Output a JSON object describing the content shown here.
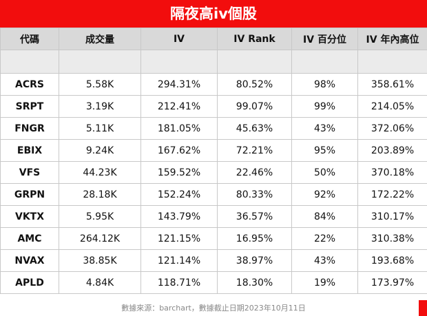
{
  "title": "隔夜高iv個股",
  "headers": [
    "代碼",
    "成交量",
    "IV",
    "IV Rank",
    "IV 百分位",
    "IV 年內高位"
  ],
  "rows": [
    {
      "code": "ACRS",
      "volume": "5.58K",
      "iv": "294.31%",
      "iv_rank": "80.52%",
      "iv_pct": "98%",
      "iv_high": "358.61%"
    },
    {
      "code": "SRPT",
      "volume": "3.19K",
      "iv": "212.41%",
      "iv_rank": "99.07%",
      "iv_pct": "99%",
      "iv_high": "214.05%"
    },
    {
      "code": "FNGR",
      "volume": "5.11K",
      "iv": "181.05%",
      "iv_rank": "45.63%",
      "iv_pct": "43%",
      "iv_high": "372.06%"
    },
    {
      "code": "EBIX",
      "volume": "9.24K",
      "iv": "167.62%",
      "iv_rank": "72.21%",
      "iv_pct": "95%",
      "iv_high": "203.89%"
    },
    {
      "code": "VFS",
      "volume": "44.23K",
      "iv": "159.52%",
      "iv_rank": "22.46%",
      "iv_pct": "50%",
      "iv_high": "370.18%"
    },
    {
      "code": "GRPN",
      "volume": "28.18K",
      "iv": "152.24%",
      "iv_rank": "80.33%",
      "iv_pct": "92%",
      "iv_high": "172.22%"
    },
    {
      "code": "VKTX",
      "volume": "5.95K",
      "iv": "143.79%",
      "iv_rank": "36.57%",
      "iv_pct": "84%",
      "iv_high": "310.17%"
    },
    {
      "code": "AMC",
      "volume": "264.12K",
      "iv": "121.15%",
      "iv_rank": "16.95%",
      "iv_pct": "22%",
      "iv_high": "310.38%"
    },
    {
      "code": "NVAX",
      "volume": "38.85K",
      "iv": "121.14%",
      "iv_rank": "38.97%",
      "iv_pct": "43%",
      "iv_high": "193.68%"
    },
    {
      "code": "APLD",
      "volume": "4.84K",
      "iv": "118.71%",
      "iv_rank": "18.30%",
      "iv_pct": "19%",
      "iv_high": "173.97%"
    }
  ],
  "footer": "數據來源：barchart，數據截止日期2023年10月11日",
  "colors": {
    "title_bg": "#f20d0d",
    "header_bg": "#d9d9d9",
    "spacer_bg": "#ebebeb"
  }
}
